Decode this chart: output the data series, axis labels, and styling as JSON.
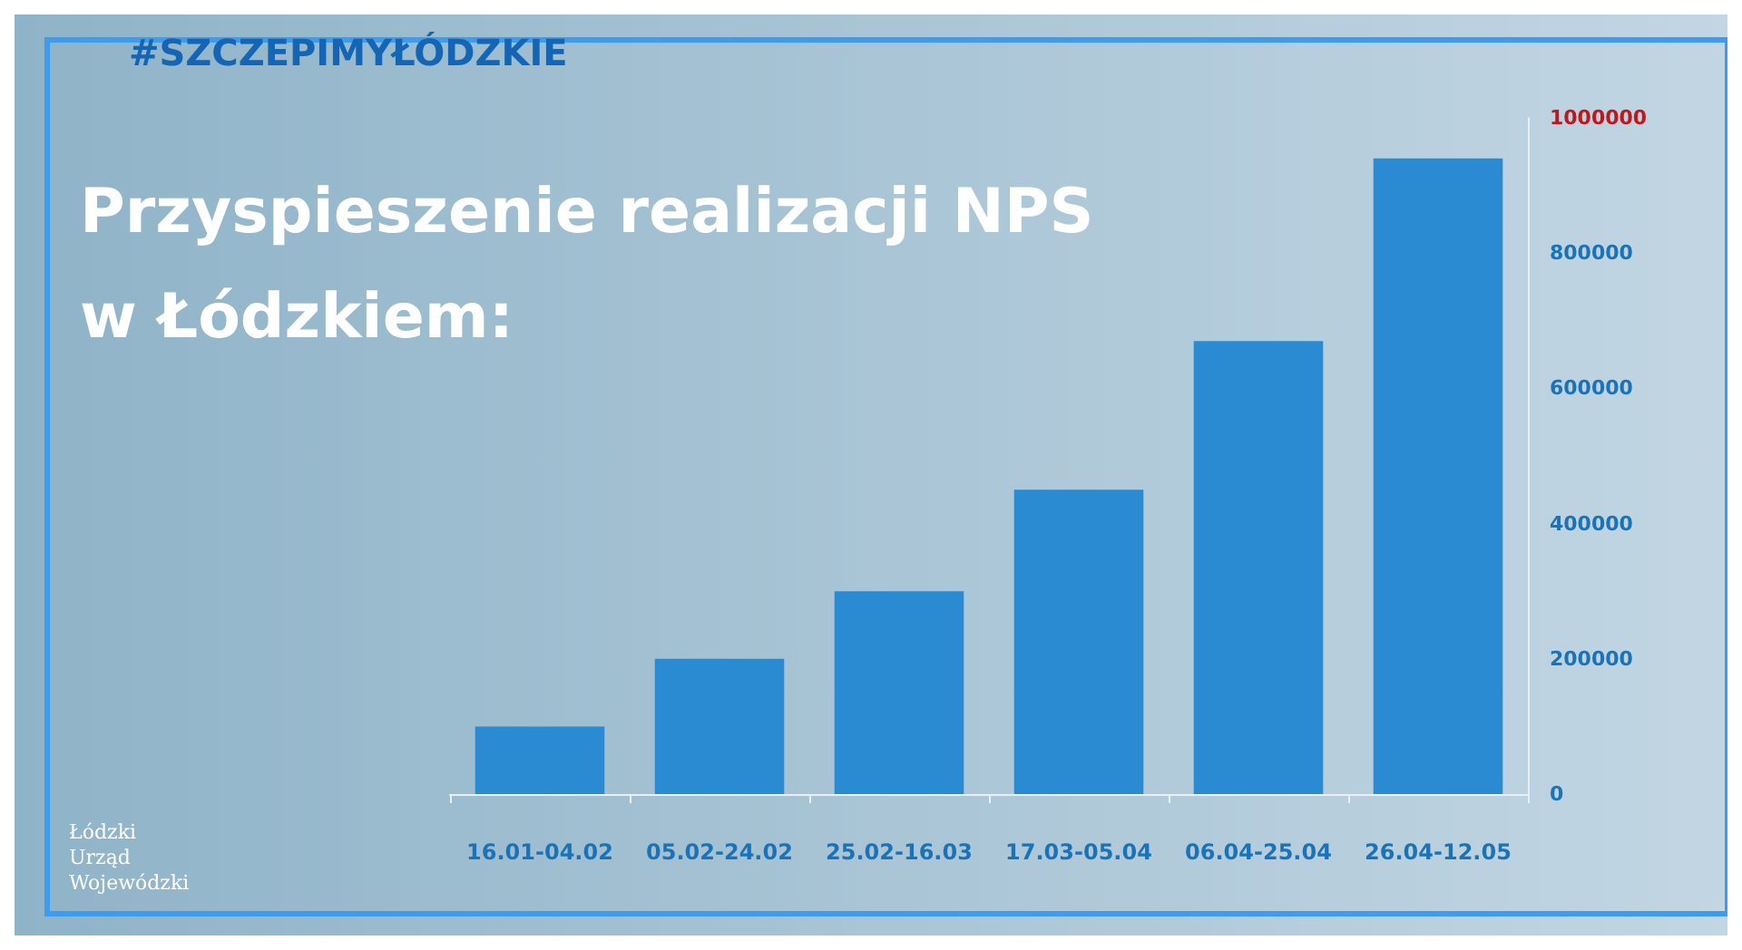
{
  "chart_data": {
    "type": "bar",
    "title": "Przyspieszenie realizacji NPS\nw Łódzkiem:",
    "subtitle": "#SZCZEPIMYŁÓDZKIE",
    "annotations": [
      "Łódzki Urząd Wojewódzki"
    ],
    "categories": [
      "16.01-04.02",
      "05.02-24.02",
      "25.02-16.03",
      "17.03-05.04",
      "06.04-25.04",
      "26.04-12.05"
    ],
    "values": [
      100000,
      200000,
      300000,
      450000,
      670000,
      940000
    ],
    "color": "#2a8ad2",
    "ylim": [
      0,
      1000000
    ],
    "yticks": [
      0,
      200000,
      400000,
      600000,
      800000,
      1000000
    ],
    "grid": false
  }
}
